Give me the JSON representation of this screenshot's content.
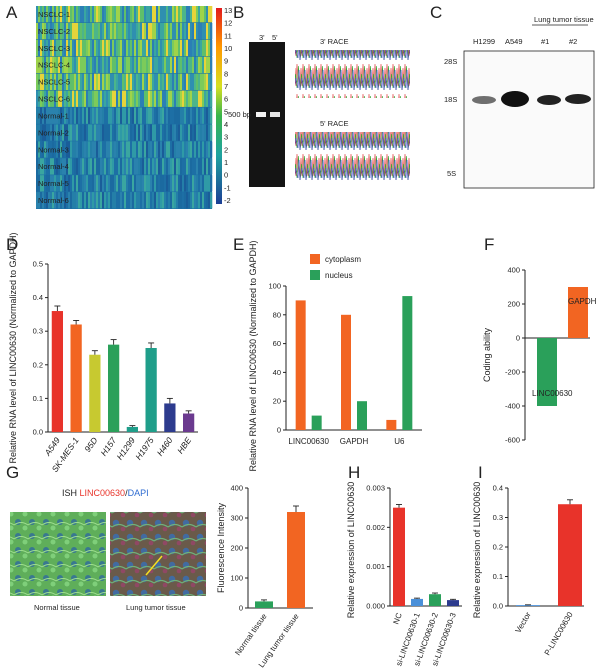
{
  "panel_labels": {
    "A": "A",
    "B": "B",
    "C": "C",
    "D": "D",
    "E": "E",
    "F": "F",
    "G": "G",
    "H": "H",
    "I": "I"
  },
  "heatmap": {
    "rows": [
      "NSCLC-1",
      "NSCLC-2",
      "NSCLC-3",
      "NSCLC-4",
      "NSCLC-5",
      "NSCLC-6",
      "Normal-1",
      "Normal-2",
      "Normal-3",
      "Normal-4",
      "Normal-5",
      "Normal-6"
    ],
    "scale": [
      "13",
      "12",
      "11",
      "10",
      "9",
      "8",
      "7",
      "6",
      "5",
      "4",
      "3",
      "2",
      "1",
      "0",
      "-1",
      "-2"
    ]
  },
  "race": {
    "lane1": "3'",
    "lane2": "5'",
    "marker": "500 bp",
    "top_label": "3' RACE",
    "bottom_label": "5' RACE"
  },
  "northern": {
    "header": "Lung tumor tissue",
    "lanes": [
      "H1299",
      "A549",
      "#1",
      "#2"
    ],
    "markers": [
      "28S",
      "18S",
      "5S"
    ]
  },
  "colors": {
    "red": "#e8332a",
    "orange": "#f26522",
    "green": "#2aa05a",
    "teal": "#1f9e8a",
    "navy": "#2d3b8e",
    "purple": "#6b3a8f",
    "lime": "#c7c930",
    "blue": "#4a90d9"
  },
  "chart_data": [
    {
      "panel": "D",
      "type": "bar",
      "ylabel": "Relative RNA level of LINC00630 (Normalized to GAPDH)",
      "categories": [
        "A549",
        "SK-MES-1",
        "95D",
        "H157",
        "H1299",
        "H1975",
        "H460",
        "HBE"
      ],
      "values": [
        0.36,
        0.32,
        0.23,
        0.26,
        0.015,
        0.25,
        0.085,
        0.055
      ],
      "errors": [
        0.015,
        0.012,
        0.012,
        0.015,
        0.004,
        0.015,
        0.015,
        0.008
      ],
      "ylim": [
        0,
        0.5
      ],
      "ticks": [
        "0.0",
        "0.1",
        "0.2",
        "0.3",
        "0.4",
        "0.5"
      ]
    },
    {
      "panel": "E",
      "type": "bar",
      "ylabel": "Relative RNA level of LINC00630 (Normalized to GAPDH)",
      "categories": [
        "LINC00630",
        "GAPDH",
        "U6"
      ],
      "series": [
        {
          "name": "cytoplasm",
          "values": [
            90,
            80,
            7
          ]
        },
        {
          "name": "nucleus",
          "values": [
            10,
            20,
            93
          ]
        }
      ],
      "ylim": [
        0,
        100
      ],
      "ticks": [
        "0",
        "20",
        "40",
        "60",
        "80",
        "100"
      ]
    },
    {
      "panel": "F",
      "type": "bar",
      "ylabel": "Coding ability",
      "categories": [
        "LINC00630",
        "GAPDH"
      ],
      "values": [
        -400,
        300
      ],
      "ylim": [
        -600,
        400
      ],
      "ticks": [
        "400",
        "200",
        "0",
        "-200",
        "-400",
        "-600"
      ]
    },
    {
      "panel": "G",
      "type": "bar",
      "ylabel": "Fluorescence Intensity",
      "categories": [
        "Normal tissue",
        "Lung tumor tissue"
      ],
      "values": [
        22,
        320
      ],
      "errors": [
        5,
        20
      ],
      "ylim": [
        0,
        400
      ],
      "ticks": [
        "0",
        "100",
        "200",
        "300",
        "400"
      ]
    },
    {
      "panel": "H",
      "type": "bar",
      "ylabel": "Relative expression of LINC00630",
      "categories": [
        "NC",
        "si-LINC00630-1",
        "si-LINC00630-2",
        "si-LINC00630-3"
      ],
      "values": [
        0.0025,
        0.00018,
        0.0003,
        0.00015
      ],
      "errors": [
        8e-05,
        2e-05,
        3e-05,
        2e-05
      ],
      "ylim": [
        0,
        0.003
      ],
      "ticks": [
        "0.000",
        "0.001",
        "0.002",
        "0.003"
      ]
    },
    {
      "panel": "I",
      "type": "bar",
      "ylabel": "Relative expression of LINC00630",
      "categories": [
        "Vector",
        "P-LINC00630"
      ],
      "values": [
        0.003,
        0.345
      ],
      "errors": [
        0.001,
        0.015
      ],
      "ylim": [
        0,
        0.4
      ],
      "ticks": [
        "0.0",
        "0.1",
        "0.2",
        "0.3",
        "0.4"
      ]
    }
  ],
  "ish": {
    "title_prefix": "ISH ",
    "title_gene": "LINC00630",
    "title_sep": "/",
    "title_dapi": "DAPI",
    "normal_caption": "Normal tissue",
    "tumor_caption": "Lung tumor tissue"
  }
}
